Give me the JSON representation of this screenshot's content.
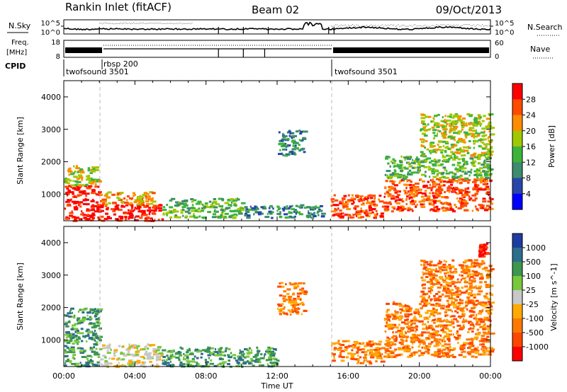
{
  "header": {
    "station": "Rankin Inlet (fitACF)",
    "beam": "Beam 02",
    "date": "09/Oct/2013"
  },
  "status_panels": {
    "nsky_label": "N.Sky",
    "nsearch_label": "N.Search",
    "freq_label_1": "Freq.",
    "freq_label_2": "[MHz]",
    "nave_label": "Nave",
    "cpid_label": "CPID",
    "noise_ticks_left": [
      "10^5",
      "10^0"
    ],
    "noise_ticks_right": [
      "10^5",
      "10^0"
    ],
    "freq_ticks": [
      "18",
      "8"
    ],
    "nave_ticks": [
      "60",
      "0"
    ],
    "cpid_segments": [
      {
        "name": "twofsound 3501",
        "start_h": 0,
        "end_h": 2.0
      },
      {
        "name": "rbsp 200",
        "start_h": 2.0,
        "end_h": 15.0
      },
      {
        "name": "twofsound 3501",
        "start_h": 15.0,
        "end_h": 24
      }
    ]
  },
  "chart_data": [
    {
      "type": "heatmap",
      "name": "Power",
      "xlabel": "",
      "ylabel": "Slant Range [km]",
      "xlim": [
        0,
        24
      ],
      "ylim": [
        180,
        4500
      ],
      "yticks": [
        1000,
        2000,
        3000,
        4000
      ],
      "colorbar_label": "Power [dB]",
      "colorbar_ticks": [
        "28",
        "24",
        "20",
        "16",
        "12",
        "8",
        "4"
      ],
      "colorbar_colors": [
        "#ff0000",
        "#ff4a00",
        "#ff8c00",
        "#a0c800",
        "#3cb43c",
        "#3c8c6e",
        "#2846aa",
        "#0000ff"
      ],
      "regions": [
        {
          "x0": 0.0,
          "x1": 2.0,
          "y0": 200,
          "y1": 1300,
          "level": 0
        },
        {
          "x0": 0.0,
          "x1": 2.0,
          "y0": 1300,
          "y1": 1900,
          "level": 3
        },
        {
          "x0": 2.0,
          "x1": 5.5,
          "y0": 200,
          "y1": 700,
          "level": 0
        },
        {
          "x0": 2.0,
          "x1": 5.0,
          "y0": 700,
          "y1": 1100,
          "level": 2
        },
        {
          "x0": 5.5,
          "x1": 10.0,
          "y0": 300,
          "y1": 900,
          "level": 4
        },
        {
          "x0": 10.0,
          "x1": 14.5,
          "y0": 300,
          "y1": 700,
          "level": 5
        },
        {
          "x0": 12.0,
          "x1": 13.5,
          "y0": 2200,
          "y1": 3000,
          "level": 5
        },
        {
          "x0": 15.0,
          "x1": 18.0,
          "y0": 300,
          "y1": 1000,
          "level": 1
        },
        {
          "x0": 18.0,
          "x1": 24.0,
          "y0": 500,
          "y1": 1500,
          "level": 1
        },
        {
          "x0": 18.0,
          "x1": 24.0,
          "y0": 1500,
          "y1": 2200,
          "level": 4
        },
        {
          "x0": 20.0,
          "x1": 24.0,
          "y0": 2200,
          "y1": 3500,
          "level": 3
        }
      ]
    },
    {
      "type": "heatmap",
      "name": "Velocity",
      "xlabel": "Time UT",
      "ylabel": "Slant Range [km]",
      "xlim": [
        0,
        24
      ],
      "ylim": [
        180,
        4500
      ],
      "xticks": [
        "00:00",
        "04:00",
        "08:00",
        "12:00",
        "16:00",
        "20:00",
        "00:00"
      ],
      "yticks": [
        1000,
        2000,
        3000,
        4000
      ],
      "colorbar_label": "Velocity [m s^-1]",
      "colorbar_ticks": [
        "1000",
        "500",
        "100",
        "25",
        "-25",
        "-100",
        "-500",
        "-1000"
      ],
      "colorbar_colors": [
        "#1e3ca0",
        "#2d6e8c",
        "#3c9650",
        "#78c83c",
        "#c8c8c8",
        "#ffaa00",
        "#ff7800",
        "#ff4600",
        "#ff0000"
      ],
      "regions": [
        {
          "x0": 0.0,
          "x1": 2.0,
          "y0": 200,
          "y1": 2000,
          "level": 2
        },
        {
          "x0": 2.0,
          "x1": 5.5,
          "y0": 200,
          "y1": 900,
          "level": 4
        },
        {
          "x0": 5.5,
          "x1": 12.0,
          "y0": 200,
          "y1": 800,
          "level": 2
        },
        {
          "x0": 12.0,
          "x1": 13.5,
          "y0": 1800,
          "y1": 2800,
          "level": 6
        },
        {
          "x0": 15.0,
          "x1": 18.0,
          "y0": 300,
          "y1": 1000,
          "level": 6
        },
        {
          "x0": 18.0,
          "x1": 24.0,
          "y0": 500,
          "y1": 1500,
          "level": 6
        },
        {
          "x0": 18.0,
          "x1": 24.0,
          "y0": 1500,
          "y1": 2200,
          "level": 6
        },
        {
          "x0": 20.0,
          "x1": 24.0,
          "y0": 2200,
          "y1": 3500,
          "level": 6
        },
        {
          "x0": 23.3,
          "x1": 23.8,
          "y0": 3600,
          "y1": 4000,
          "level": 8
        }
      ]
    }
  ]
}
